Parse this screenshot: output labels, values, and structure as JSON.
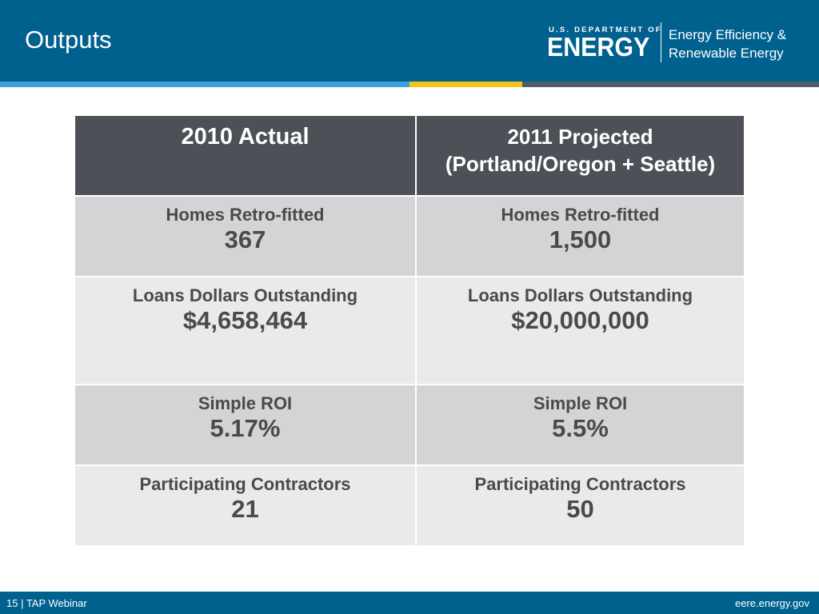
{
  "header": {
    "title": "Outputs",
    "logo": {
      "department": "U.S. DEPARTMENT OF",
      "energy": "ENERGY",
      "office_line1": "Energy Efficiency &",
      "office_line2": "Renewable Energy"
    }
  },
  "colors": {
    "header_bg": "#00618f",
    "stripe_blue": "#3ba3dc",
    "stripe_yellow": "#f5c21b",
    "table_header_bg": "#4d5157"
  },
  "table": {
    "columns": [
      {
        "line1": "2010  Actual"
      },
      {
        "line1": "2011 Projected",
        "line2": "(Portland/Oregon + Seattle)"
      }
    ],
    "rows": [
      {
        "left_label": "Homes Retro-fitted",
        "left_value": "367",
        "right_label": "Homes Retro-fitted",
        "right_value": "1,500"
      },
      {
        "left_label": "Loans  Dollars Outstanding",
        "left_value": "$4,658,464",
        "right_label": "Loans  Dollars Outstanding",
        "right_value": "$20,000,000"
      },
      {
        "left_label": "Simple ROI",
        "left_value": "5.17%",
        "right_label": "Simple ROI",
        "right_value": "5.5%"
      },
      {
        "left_label": "Participating Contractors",
        "left_value": "21",
        "right_label": "Participating Contractors",
        "right_value": "50"
      }
    ]
  },
  "footer": {
    "left": "15 | TAP Webinar",
    "right": "eere.energy.gov"
  }
}
